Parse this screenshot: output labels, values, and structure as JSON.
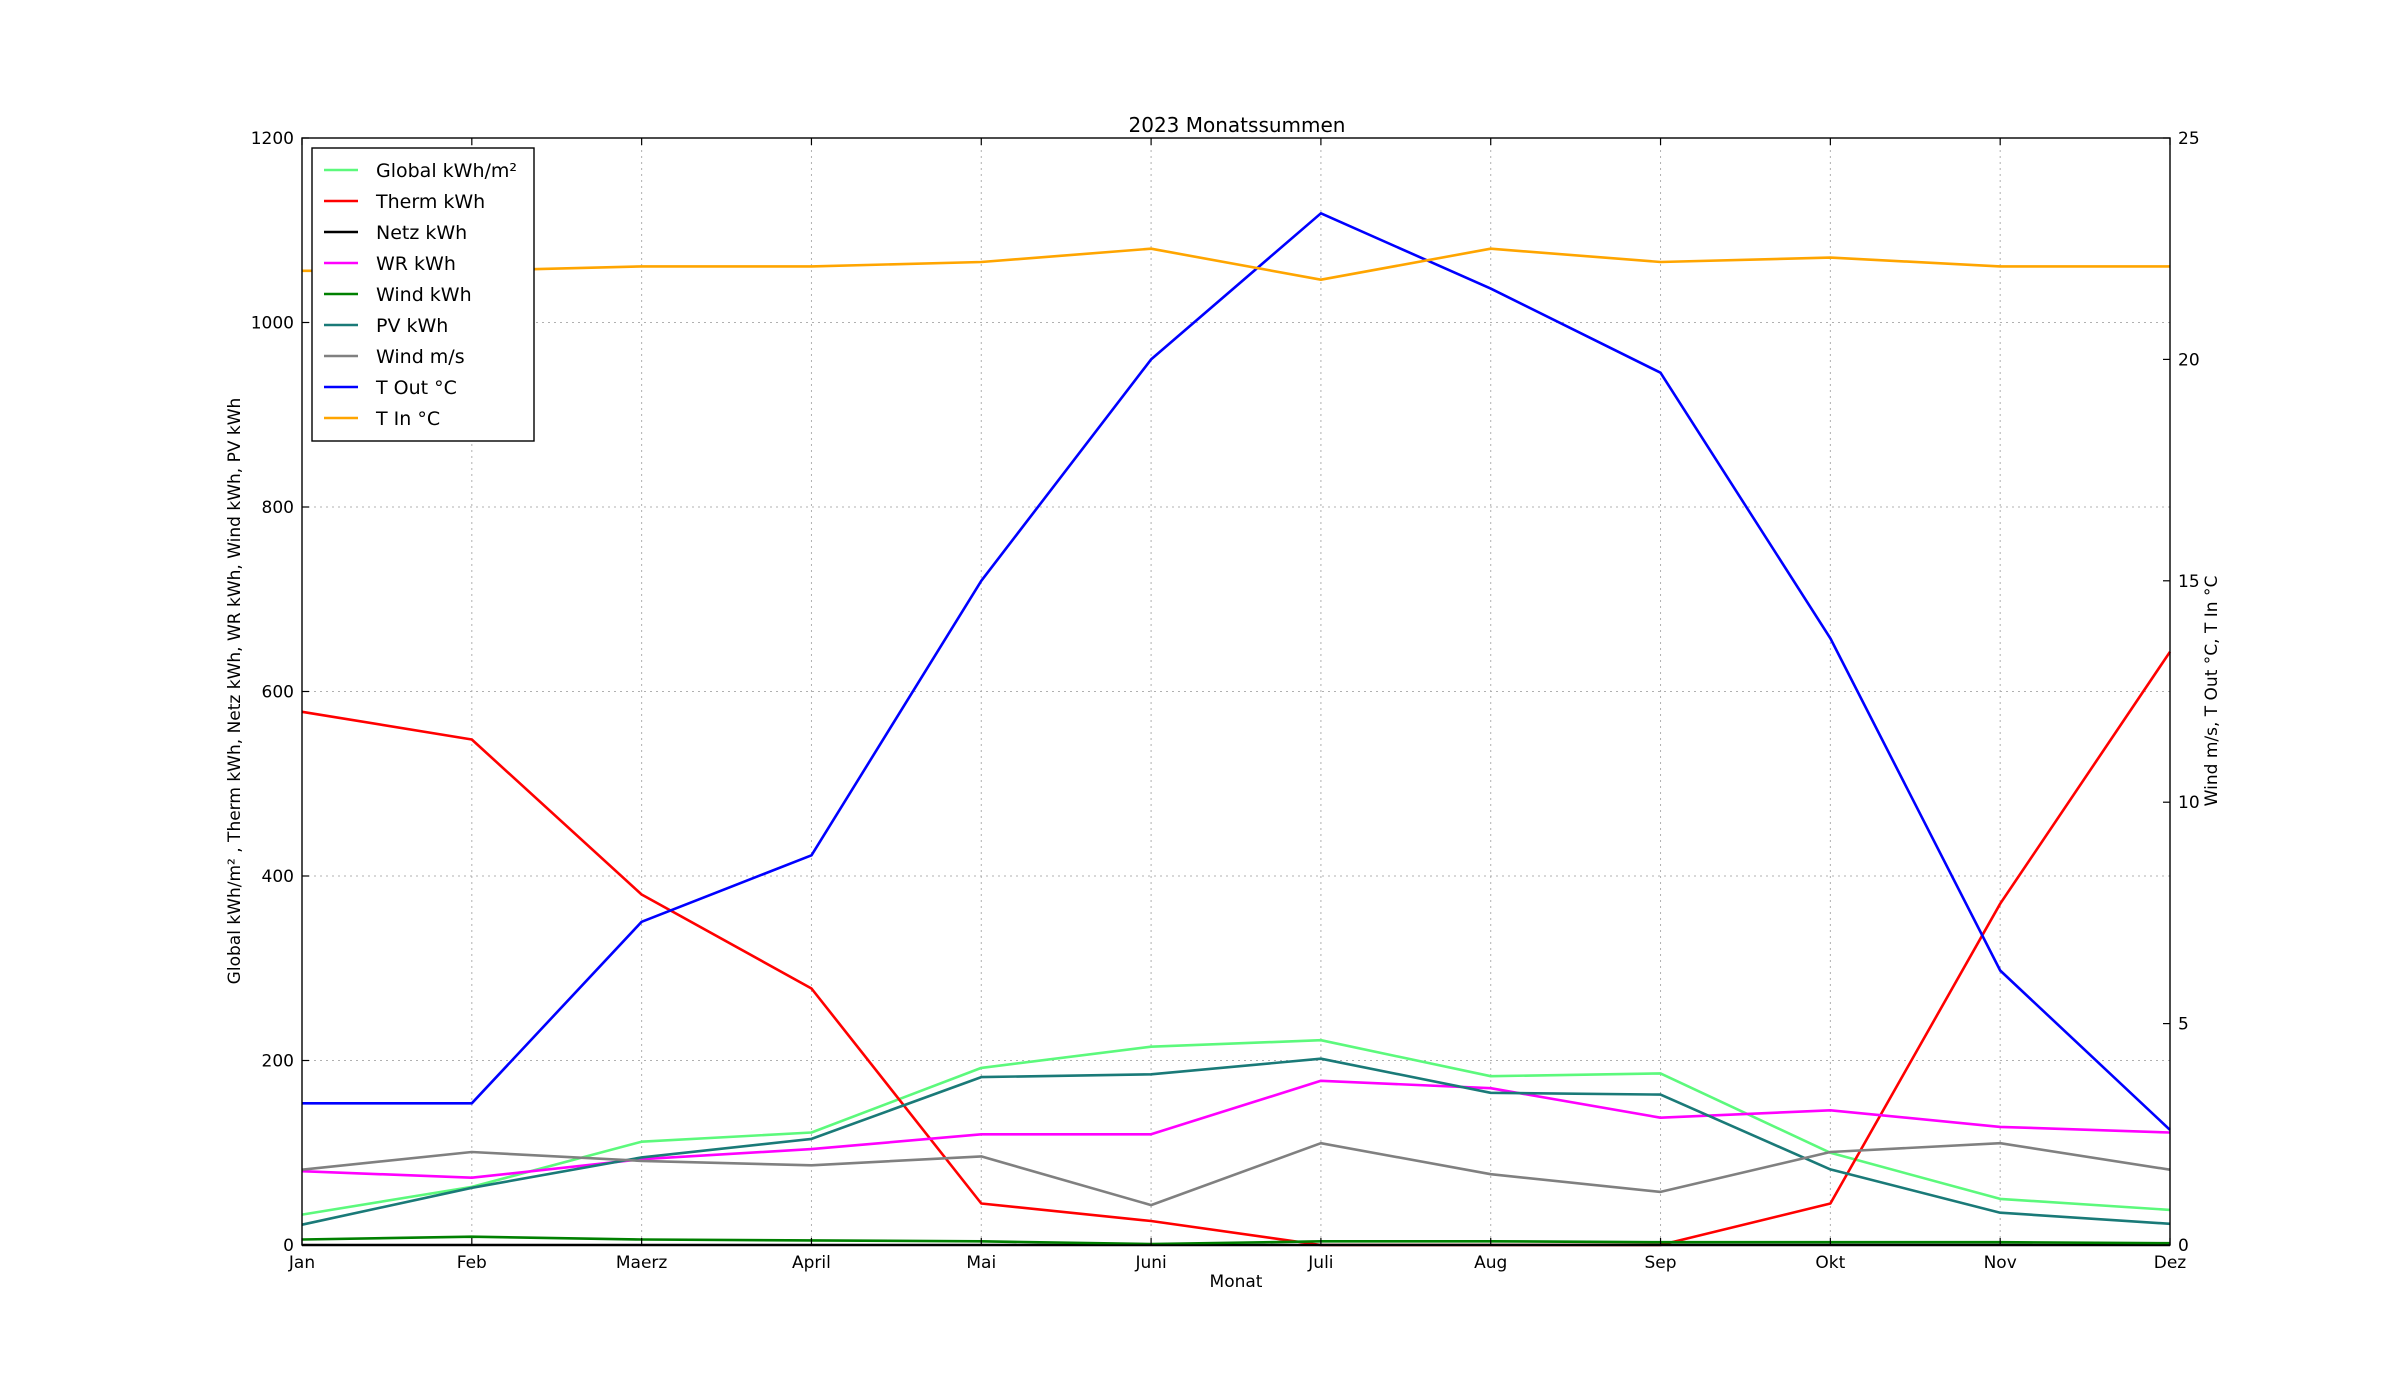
{
  "chart_data": {
    "type": "line",
    "title": "2023 Monatssummen",
    "xlabel": "Monat",
    "ylabel_left": "Global kWh/m² , Therm kWh, Netz kWh, WR kWh, Wind kWh, PV kWh",
    "ylabel_right": "Wind m/s, T Out °C, T In °C",
    "categories": [
      "Jan",
      "Feb",
      "Maerz",
      "April",
      "Mai",
      "Juni",
      "Juli",
      "Aug",
      "Sep",
      "Okt",
      "Nov",
      "Dez"
    ],
    "ylim_left": [
      0,
      1200
    ],
    "yticks_left": [
      0,
      200,
      400,
      600,
      800,
      1000,
      1200
    ],
    "ylim_right": [
      0,
      25
    ],
    "yticks_right": [
      0,
      5,
      10,
      15,
      20,
      25
    ],
    "grid": true,
    "legend_position": "upper-left",
    "series": [
      {
        "name": "Global kWh/m²",
        "axis": "left",
        "color": "#5cf97c",
        "values": [
          33,
          63,
          112,
          122,
          192,
          215,
          222,
          183,
          186,
          100,
          50,
          38
        ]
      },
      {
        "name": "Therm kWh",
        "axis": "left",
        "color": "#ff0000",
        "values": [
          578,
          548,
          380,
          278,
          45,
          26,
          0,
          0,
          0,
          45,
          370,
          643
        ]
      },
      {
        "name": "Netz kWh",
        "axis": "left",
        "color": "#000000",
        "values": [
          0,
          0,
          0,
          0,
          0,
          0,
          0,
          0,
          0,
          0,
          0,
          0
        ]
      },
      {
        "name": "WR kWh",
        "axis": "left",
        "color": "#ff00ff",
        "values": [
          80,
          73,
          93,
          104,
          120,
          120,
          178,
          170,
          138,
          146,
          128,
          122
        ]
      },
      {
        "name": "Wind kWh",
        "axis": "left",
        "color": "#008000",
        "values": [
          6,
          9,
          6,
          5,
          4,
          1,
          4,
          4,
          3,
          3,
          3,
          2
        ]
      },
      {
        "name": "PV kWh",
        "axis": "left",
        "color": "#1a7a78",
        "values": [
          22,
          62,
          95,
          115,
          182,
          185,
          202,
          165,
          163,
          82,
          35,
          23
        ]
      },
      {
        "name": "Wind m/s",
        "axis": "right",
        "color": "#808080",
        "values": [
          1.7,
          2.1,
          1.9,
          1.8,
          2.0,
          0.9,
          2.3,
          1.6,
          1.2,
          2.1,
          2.3,
          1.7
        ]
      },
      {
        "name": "T Out °C",
        "axis": "right",
        "color": "#0000ff",
        "values": [
          3.2,
          3.2,
          7.3,
          8.8,
          15.0,
          20.0,
          23.3,
          21.6,
          19.7,
          13.7,
          6.2,
          2.6
        ]
      },
      {
        "name": "T In °C",
        "axis": "right",
        "color": "#ffa500",
        "values": [
          22.0,
          22.0,
          22.1,
          22.1,
          22.2,
          22.5,
          21.8,
          22.5,
          22.2,
          22.3,
          22.1,
          22.1
        ]
      }
    ]
  }
}
